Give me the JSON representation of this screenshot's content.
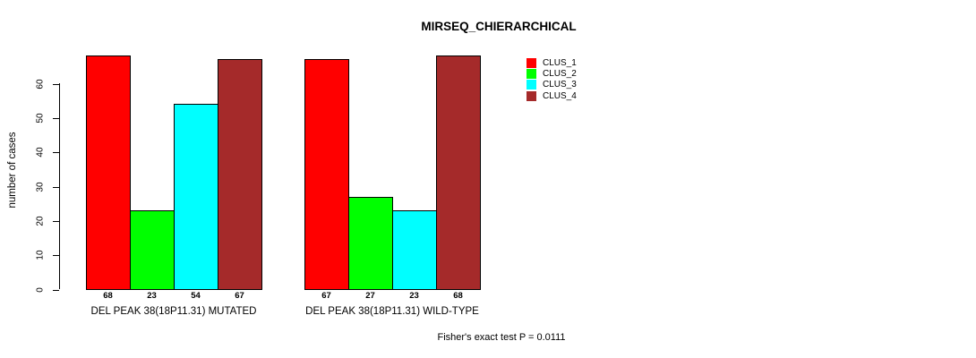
{
  "title": "MIRSEQ_CHIERARCHICAL",
  "y_axis": {
    "label": "number of cases",
    "ticks": [
      0,
      10,
      20,
      30,
      40,
      50,
      60
    ]
  },
  "legend": {
    "items": [
      {
        "label": "CLUS_1",
        "color": "#FF0000"
      },
      {
        "label": "CLUS_2",
        "color": "#00FF00"
      },
      {
        "label": "CLUS_3",
        "color": "#00FFFF"
      },
      {
        "label": "CLUS_4",
        "color": "#A52A2A"
      }
    ]
  },
  "footer": "Fisher's exact test P = 0.0111",
  "chart_data": {
    "type": "bar",
    "title": "MIRSEQ_CHIERARCHICAL",
    "xlabel": "",
    "ylabel": "number of cases",
    "ylim": [
      0,
      60
    ],
    "yticks": [
      0,
      10,
      20,
      30,
      40,
      50,
      60
    ],
    "grid": false,
    "legend_position": "top-right",
    "categories": [
      "DEL PEAK 38(18P11.31) MUTATED",
      "DEL PEAK 38(18P11.31) WILD-TYPE"
    ],
    "series": [
      {
        "name": "CLUS_1",
        "color": "#FF0000",
        "values": [
          68,
          67
        ]
      },
      {
        "name": "CLUS_2",
        "color": "#00FF00",
        "values": [
          23,
          27
        ]
      },
      {
        "name": "CLUS_3",
        "color": "#00FFFF",
        "values": [
          54,
          23
        ]
      },
      {
        "name": "CLUS_4",
        "color": "#A52A2A",
        "values": [
          67,
          68
        ]
      }
    ],
    "bar_value_labels": [
      [
        68,
        23,
        54,
        67
      ],
      [
        67,
        27,
        23,
        68
      ]
    ],
    "annotation": "Fisher's exact test P = 0.0111"
  }
}
